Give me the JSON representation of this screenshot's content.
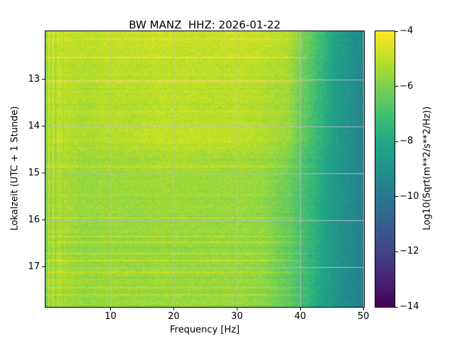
{
  "chart_data": {
    "type": "heatmap",
    "title": "BW MANZ  HHZ: 2026-01-22",
    "xlabel": "Frequency [Hz]",
    "ylabel": "Lokalzeit (UTC + 1 Stunde)",
    "colorbar_label": "Log10(Sqrt(m**2/s**2/Hz))",
    "colormap": "viridis",
    "grid": true,
    "x_range": [
      -0.3,
      50.1
    ],
    "y_range": [
      11.97,
      17.85
    ],
    "value_range": [
      -14,
      -4
    ],
    "x_ticks": [
      10,
      20,
      30,
      40,
      50
    ],
    "x_tick_labels": [
      "10",
      "20",
      "30",
      "40",
      "50"
    ],
    "y_ticks": [
      13,
      14,
      15,
      16,
      17
    ],
    "y_tick_labels": [
      "13",
      "14",
      "15",
      "16",
      "17"
    ],
    "colorbar_ticks": [
      -4,
      -6,
      -8,
      -10,
      -12,
      -14
    ],
    "colorbar_tick_labels": [
      "−4",
      "−6",
      "−8",
      "−10",
      "−12",
      "−14"
    ],
    "freq_centers": [
      2,
      6,
      10,
      14,
      18,
      22,
      26,
      30,
      34,
      38,
      42,
      46,
      50
    ],
    "time_centers": [
      12.25,
      12.75,
      13.25,
      13.75,
      14.25,
      14.75,
      15.25,
      15.75,
      16.25,
      16.75,
      17.25,
      17.75
    ],
    "values": [
      [
        -4.9,
        -5.0,
        -4.9,
        -4.9,
        -4.8,
        -4.9,
        -4.9,
        -4.8,
        -4.9,
        -5.1,
        -6.6,
        -8.4,
        -9.4
      ],
      [
        -5.0,
        -5.2,
        -5.0,
        -5.1,
        -5.0,
        -5.0,
        -5.0,
        -5.0,
        -5.1,
        -5.3,
        -6.8,
        -8.5,
        -9.4
      ],
      [
        -5.0,
        -5.2,
        -5.1,
        -5.1,
        -5.0,
        -5.0,
        -5.1,
        -5.0,
        -5.2,
        -5.4,
        -6.9,
        -8.5,
        -9.5
      ],
      [
        -5.1,
        -5.3,
        -5.1,
        -5.2,
        -5.0,
        -5.1,
        -5.1,
        -5.1,
        -5.2,
        -5.5,
        -7.0,
        -8.6,
        -9.5
      ],
      [
        -5.0,
        -5.2,
        -5.1,
        -5.0,
        -4.9,
        -4.9,
        -4.9,
        -4.9,
        -5.1,
        -5.5,
        -7.0,
        -8.6,
        -9.5
      ],
      [
        -5.2,
        -5.5,
        -5.4,
        -5.4,
        -5.3,
        -5.3,
        -5.4,
        -5.4,
        -5.5,
        -6.0,
        -7.3,
        -8.7,
        -9.6
      ],
      [
        -5.3,
        -5.6,
        -5.5,
        -5.5,
        -5.4,
        -5.5,
        -5.5,
        -5.5,
        -5.6,
        -6.2,
        -7.4,
        -8.8,
        -9.6
      ],
      [
        -5.3,
        -5.6,
        -5.5,
        -5.6,
        -5.5,
        -5.5,
        -5.6,
        -5.5,
        -5.7,
        -6.3,
        -7.5,
        -8.8,
        -9.7
      ],
      [
        -5.3,
        -5.7,
        -5.6,
        -5.6,
        -5.5,
        -5.6,
        -5.6,
        -5.6,
        -5.7,
        -6.3,
        -7.5,
        -8.9,
        -9.7
      ],
      [
        -5.4,
        -5.7,
        -5.6,
        -5.6,
        -5.6,
        -5.6,
        -5.6,
        -5.6,
        -5.7,
        -6.4,
        -7.6,
        -8.9,
        -9.7
      ],
      [
        -5.2,
        -5.5,
        -5.4,
        -5.5,
        -5.4,
        -5.5,
        -5.5,
        -5.5,
        -5.7,
        -6.4,
        -7.6,
        -9.0,
        -9.8
      ],
      [
        -5.4,
        -5.7,
        -5.6,
        -5.6,
        -5.6,
        -5.6,
        -5.6,
        -5.6,
        -5.8,
        -6.4,
        -7.7,
        -9.0,
        -9.8
      ]
    ]
  },
  "colors": {
    "background": "#ffffff",
    "text": "#000000",
    "gridline": "#b0b0b0",
    "spine": "#000000"
  }
}
